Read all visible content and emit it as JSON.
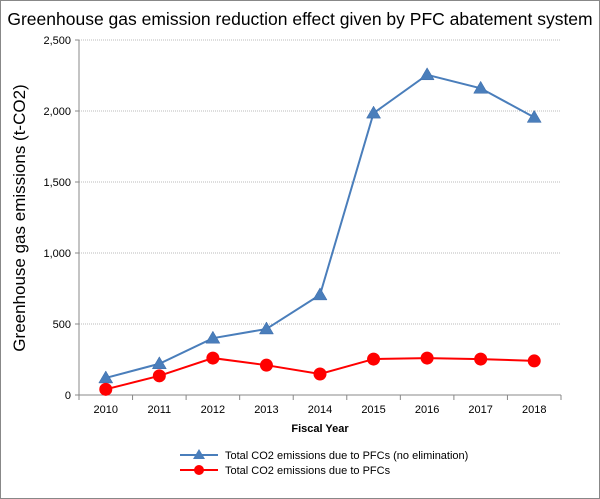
{
  "chart_data": {
    "type": "line",
    "title": "Greenhouse gas emission reduction effect given by PFC abatement system",
    "xlabel": "Fiscal Year",
    "ylabel": "Greenhouse gas emissions (t-CO2)",
    "ylim": [
      0,
      2500
    ],
    "yticks": [
      "0",
      "500",
      "1,000",
      "1,500",
      "2,000",
      "2,500"
    ],
    "ytick_values": [
      0,
      500,
      1000,
      1500,
      2000,
      2500
    ],
    "grid": "horizontal",
    "legend": "bottom",
    "categories": [
      "2010",
      "2011",
      "2012",
      "2013",
      "2014",
      "2015",
      "2016",
      "2017",
      "2018"
    ],
    "series": [
      {
        "name": "Total CO2 emissions due to PFCs (no elimination)",
        "color": "#4a7ebb",
        "marker": "triangle",
        "values": [
          120,
          220,
          400,
          465,
          705,
          1985,
          2255,
          2160,
          1955
        ]
      },
      {
        "name": "Total CO2 emissions due to PFCs",
        "color": "#ff0000",
        "marker": "circle",
        "values": [
          40,
          135,
          260,
          210,
          148,
          253,
          260,
          253,
          240
        ]
      }
    ]
  }
}
